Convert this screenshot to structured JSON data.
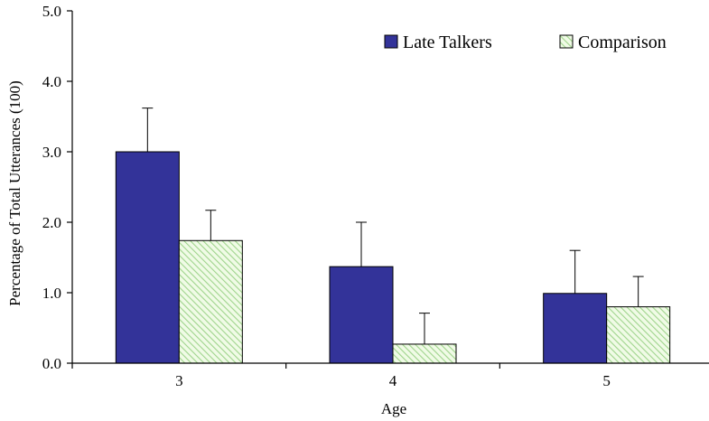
{
  "chart_data": {
    "type": "bar",
    "title": "",
    "xlabel": "Age",
    "ylabel": "Percentage of Total Utterances (100)",
    "categories": [
      "3",
      "4",
      "5"
    ],
    "ylim": [
      0,
      5
    ],
    "yticks": [
      0,
      1,
      2,
      3,
      4,
      5
    ],
    "ytick_labels": [
      "0.0",
      "1.0",
      "2.0",
      "3.0",
      "4.0",
      "5.0"
    ],
    "grid": false,
    "legend_position": "top-right",
    "series": [
      {
        "name": "Late Talkers",
        "values": [
          3.0,
          1.37,
          0.99
        ],
        "error": [
          0.62,
          0.63,
          0.61
        ],
        "color": "#333399",
        "pattern": "solid"
      },
      {
        "name": "Comparison",
        "values": [
          1.74,
          0.27,
          0.8
        ],
        "error": [
          0.43,
          0.44,
          0.43
        ],
        "color": "#ccffcc",
        "pattern": "diagonal-hatch"
      }
    ]
  }
}
